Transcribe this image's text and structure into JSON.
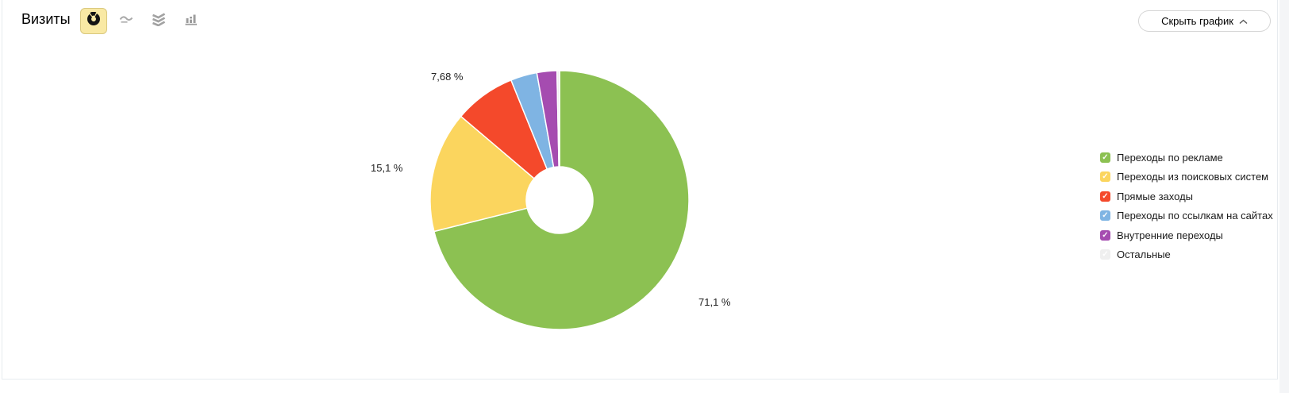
{
  "header": {
    "title": "Визиты",
    "hide_chart_label": "Скрыть график",
    "chart_type_buttons": [
      {
        "id": "pie",
        "selected": true
      },
      {
        "id": "line",
        "selected": false
      },
      {
        "id": "stacked-area",
        "selected": false
      },
      {
        "id": "columns",
        "selected": false
      }
    ]
  },
  "chart_data": {
    "type": "pie",
    "title": "Визиты",
    "donut": true,
    "start_angle_deg": 0,
    "direction": "clockwise",
    "legend_position": "right",
    "units": "%",
    "series": [
      {
        "name": "Переходы по рекламе",
        "value": 71.1,
        "label": "71,1 %",
        "color": "#8cc152"
      },
      {
        "name": "Переходы из поисковых систем",
        "value": 15.1,
        "label": "15,1 %",
        "color": "#fbd55e"
      },
      {
        "name": "Прямые заходы",
        "value": 7.68,
        "label": "7,68 %",
        "color": "#f4492b"
      },
      {
        "name": "Переходы по ссылкам на сайтах",
        "value": 3.3,
        "label": "",
        "color": "#7fb4e3"
      },
      {
        "name": "Внутренние переходы",
        "value": 2.5,
        "label": "",
        "color": "#a54cb0"
      },
      {
        "name": "Остальные",
        "value": 0.32,
        "label": "",
        "color": "#efefef"
      }
    ]
  },
  "colors": {
    "selected_button_bg": "#f9e9a4",
    "selected_button_border": "#d9c87e",
    "icon_gray": "#a6a6a6",
    "pie_glyph_black": "#141414",
    "button_border": "#d5d5d5",
    "card_border": "#e7ebef",
    "slice_stroke": "#ffffff"
  }
}
